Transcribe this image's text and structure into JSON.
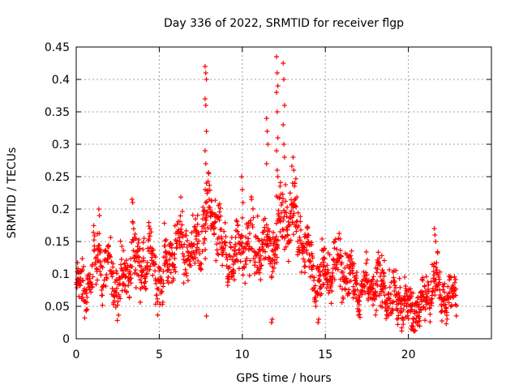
{
  "chart_data": {
    "type": "scatter",
    "title": "Day 336 of 2022, SRMTID for receiver flgp",
    "xlabel": "GPS time / hours",
    "ylabel": "SRMTID / TECUs",
    "xlim": [
      0,
      25
    ],
    "ylim": [
      0,
      0.45
    ],
    "xticks": [
      0,
      5,
      10,
      15,
      20
    ],
    "yticks": [
      0,
      0.05,
      0.1,
      0.15,
      0.2,
      0.25,
      0.3,
      0.35,
      0.4,
      0.45
    ],
    "grid": true,
    "marker": "+",
    "color": "#ff0000",
    "trend": [
      [
        0.0,
        0.07
      ],
      [
        0.5,
        0.08
      ],
      [
        1.0,
        0.1
      ],
      [
        1.3,
        0.14
      ],
      [
        1.6,
        0.11
      ],
      [
        2.0,
        0.1
      ],
      [
        2.5,
        0.09
      ],
      [
        3.0,
        0.09
      ],
      [
        3.4,
        0.15
      ],
      [
        3.7,
        0.1
      ],
      [
        4.0,
        0.12
      ],
      [
        4.5,
        0.12
      ],
      [
        5.0,
        0.09
      ],
      [
        5.5,
        0.11
      ],
      [
        6.0,
        0.15
      ],
      [
        6.5,
        0.14
      ],
      [
        7.0,
        0.13
      ],
      [
        7.5,
        0.15
      ],
      [
        8.0,
        0.19
      ],
      [
        8.5,
        0.17
      ],
      [
        9.0,
        0.12
      ],
      [
        9.5,
        0.13
      ],
      [
        10.0,
        0.15
      ],
      [
        10.5,
        0.15
      ],
      [
        11.0,
        0.14
      ],
      [
        11.5,
        0.14
      ],
      [
        12.0,
        0.15
      ],
      [
        12.5,
        0.19
      ],
      [
        13.0,
        0.19
      ],
      [
        13.5,
        0.17
      ],
      [
        14.0,
        0.12
      ],
      [
        14.5,
        0.09
      ],
      [
        15.0,
        0.09
      ],
      [
        15.5,
        0.12
      ],
      [
        16.0,
        0.11
      ],
      [
        16.5,
        0.09
      ],
      [
        17.0,
        0.08
      ],
      [
        17.5,
        0.08
      ],
      [
        18.0,
        0.08
      ],
      [
        18.5,
        0.08
      ],
      [
        19.0,
        0.06
      ],
      [
        19.5,
        0.06
      ],
      [
        20.0,
        0.05
      ],
      [
        20.5,
        0.05
      ],
      [
        21.0,
        0.06
      ],
      [
        21.5,
        0.09
      ],
      [
        22.0,
        0.07
      ],
      [
        22.5,
        0.06
      ],
      [
        22.9,
        0.06
      ]
    ],
    "spread": 0.035,
    "spikes": [
      {
        "x": 7.8,
        "values": [
          0.42,
          0.41,
          0.4,
          0.37,
          0.36,
          0.32,
          0.29,
          0.27,
          0.24,
          0.23,
          0.21,
          0.035
        ]
      },
      {
        "x": 12.1,
        "values": [
          0.435,
          0.41,
          0.39,
          0.38,
          0.35,
          0.31,
          0.29,
          0.26,
          0.25,
          0.22
        ]
      },
      {
        "x": 12.5,
        "values": [
          0.425,
          0.4,
          0.36,
          0.33,
          0.3,
          0.28
        ]
      },
      {
        "x": 11.5,
        "values": [
          0.34,
          0.32,
          0.3,
          0.27
        ]
      },
      {
        "x": 10.0,
        "values": [
          0.25,
          0.23,
          0.21
        ]
      },
      {
        "x": 13.1,
        "values": [
          0.28,
          0.26,
          0.24
        ]
      },
      {
        "x": 1.4,
        "values": [
          0.2,
          0.19
        ]
      },
      {
        "x": 3.4,
        "values": [
          0.215,
          0.21
        ]
      },
      {
        "x": 21.6,
        "values": [
          0.17,
          0.16,
          0.15
        ]
      },
      {
        "x": 11.8,
        "values": [
          0.025,
          0.03
        ]
      },
      {
        "x": 20.2,
        "values": [
          0.015,
          0.02
        ]
      },
      {
        "x": 14.6,
        "values": [
          0.025,
          0.03
        ]
      }
    ]
  }
}
